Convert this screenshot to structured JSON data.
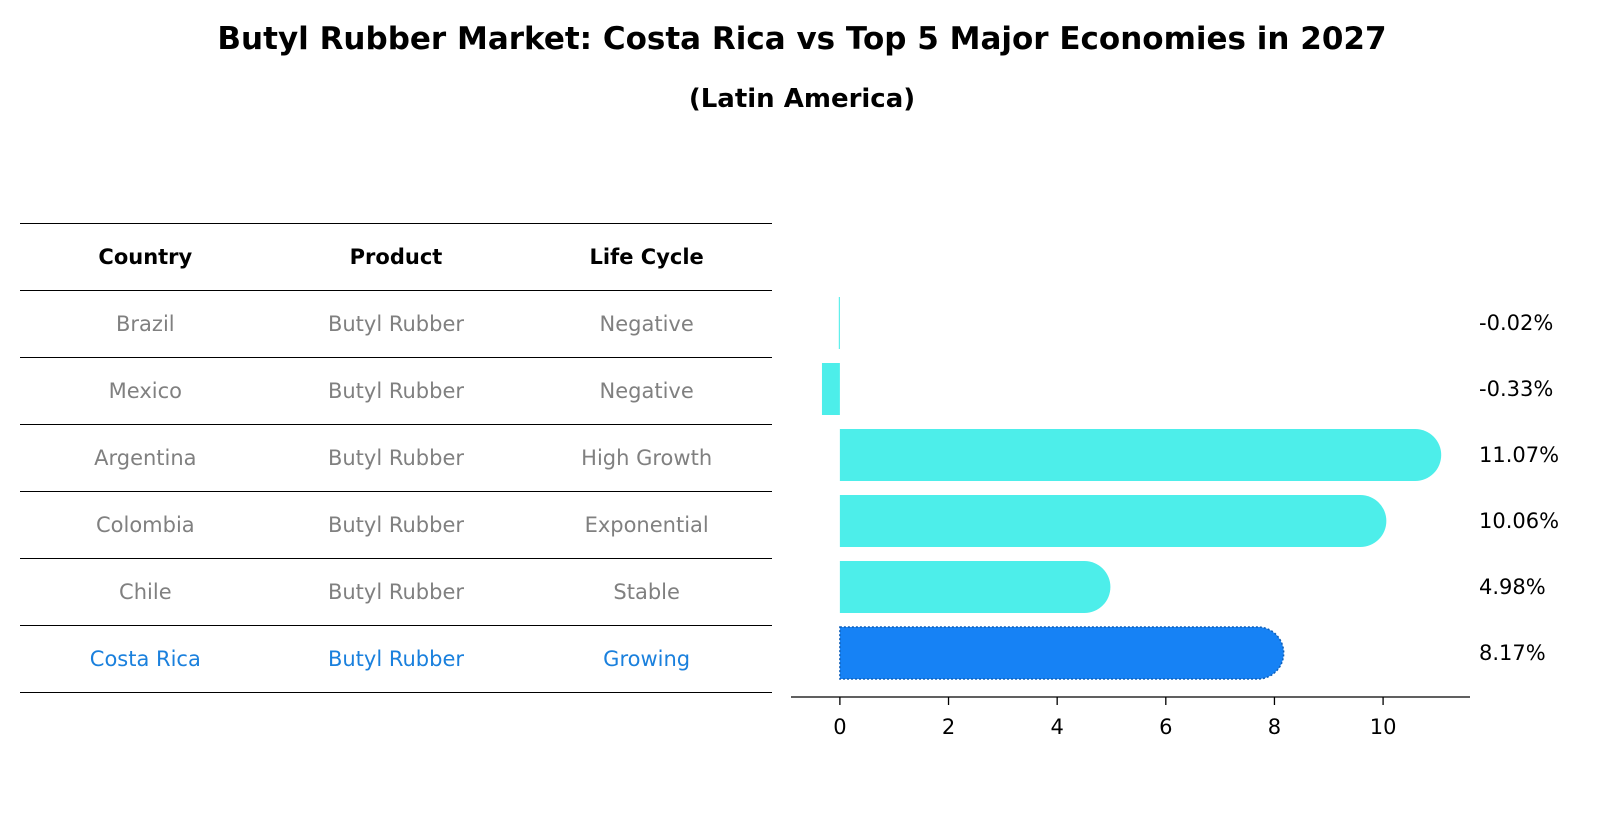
{
  "title": "Butyl Rubber Market: Costa Rica vs Top 5 Major Economies in 2027",
  "subtitle": "(Latin America)",
  "table": {
    "headers": [
      "Country",
      "Product",
      "Life Cycle"
    ],
    "rows": [
      {
        "country": "Brazil",
        "product": "Butyl Rubber",
        "life_cycle": "Negative"
      },
      {
        "country": "Mexico",
        "product": "Butyl Rubber",
        "life_cycle": "Negative"
      },
      {
        "country": "Argentina",
        "product": "Butyl Rubber",
        "life_cycle": "High Growth"
      },
      {
        "country": "Colombia",
        "product": "Butyl Rubber",
        "life_cycle": "Exponential"
      },
      {
        "country": "Chile",
        "product": "Butyl Rubber",
        "life_cycle": "Stable"
      },
      {
        "country": "Costa Rica",
        "product": "Butyl Rubber",
        "life_cycle": "Growing"
      }
    ],
    "highlight_row": 5
  },
  "colors": {
    "bar": "#4deeea",
    "highlight_bar": "#1682f5",
    "text_muted": "#808080",
    "text_highlight": "#1a80dd"
  },
  "chart_data": {
    "type": "bar",
    "orientation": "horizontal",
    "categories": [
      "Brazil",
      "Mexico",
      "Argentina",
      "Colombia",
      "Chile",
      "Costa Rica"
    ],
    "values": [
      -0.02,
      -0.33,
      11.07,
      10.06,
      4.98,
      8.17
    ],
    "value_labels": [
      "-0.02%",
      "-0.33%",
      "11.07%",
      "10.06%",
      "4.98%",
      "8.17%"
    ],
    "highlight": "Costa Rica",
    "xlim": [
      -0.9,
      11.6
    ],
    "xticks": [
      0,
      2,
      4,
      6,
      8,
      10
    ],
    "title": "",
    "xlabel": "",
    "ylabel": ""
  }
}
